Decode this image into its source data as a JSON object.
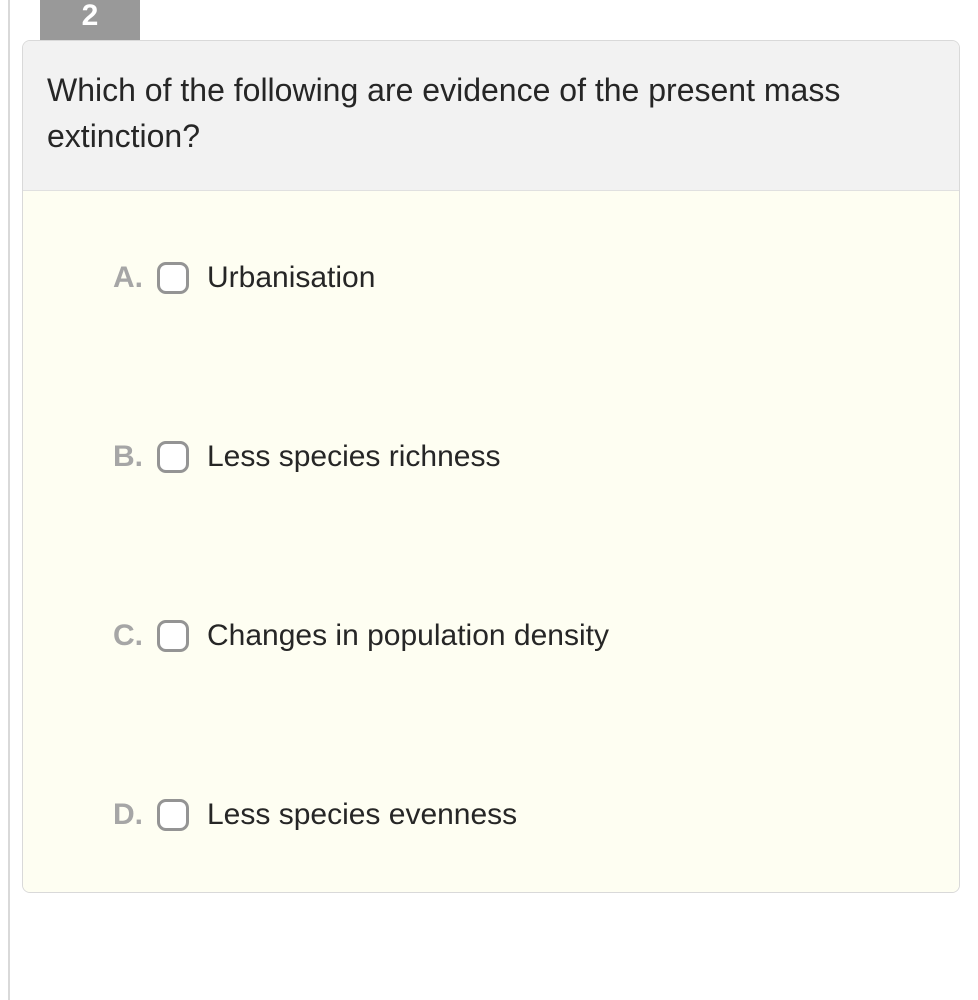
{
  "question": {
    "number": "2",
    "text": "Which of the following are evidence of the present mass extinction?",
    "options": [
      {
        "letter": "A.",
        "label": "Urbanisation"
      },
      {
        "letter": "B.",
        "label": "Less species richness"
      },
      {
        "letter": "C.",
        "label": "Changes in population density"
      },
      {
        "letter": "D.",
        "label": "Less species evenness"
      }
    ]
  },
  "colors": {
    "tab_bg": "#999999",
    "tab_fg": "#ffffff",
    "header_bg": "#f2f2f2",
    "body_bg": "#fefef2",
    "text": "#262626",
    "letter": "#a6a6a6",
    "checkbox_border": "#949494",
    "card_border": "#d9d9d9"
  }
}
